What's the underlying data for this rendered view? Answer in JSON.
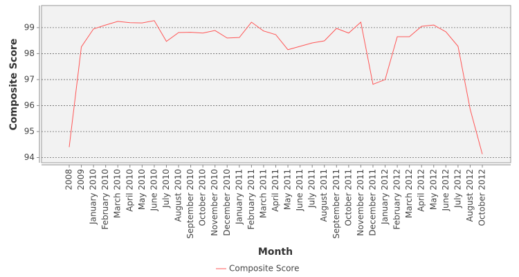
{
  "chart_data": {
    "type": "line",
    "x_label": "Month",
    "y_label": "Composite Score",
    "categories": [
      "2008",
      "2009",
      "January 2010",
      "February 2010",
      "March 2010",
      "April 2010",
      "May 2010",
      "June 2010",
      "July 2010",
      "August 2010",
      "September 2010",
      "October 2010",
      "November 2010",
      "December 2010",
      "January 2011",
      "February 2011",
      "March 2011",
      "April 2011",
      "May 2011",
      "June 2011",
      "July 2011",
      "August 2011",
      "September 2011",
      "October 2011",
      "November 2011",
      "December 2011",
      "January 2012",
      "February 2012",
      "March 2012",
      "April 2012",
      "May 2012",
      "June 2012",
      "July 2012",
      "August 2012",
      "October 2012"
    ],
    "series": [
      {
        "name": "Composite Score",
        "color": "#ff5555",
        "values": [
          94.4,
          98.26,
          98.95,
          99.1,
          99.24,
          99.19,
          99.18,
          99.27,
          98.47,
          98.81,
          98.82,
          98.79,
          98.89,
          98.6,
          98.62,
          99.21,
          98.87,
          98.73,
          98.15,
          98.28,
          98.41,
          98.49,
          98.97,
          98.79,
          99.21,
          96.82,
          97.0,
          98.65,
          98.65,
          99.05,
          99.1,
          98.84,
          98.28,
          95.86,
          94.13
        ]
      }
    ],
    "ylim": [
      93.8,
      99.85
    ],
    "yticks": [
      94,
      95,
      96,
      97,
      98,
      99
    ],
    "grid": true,
    "legend": "bottom"
  }
}
